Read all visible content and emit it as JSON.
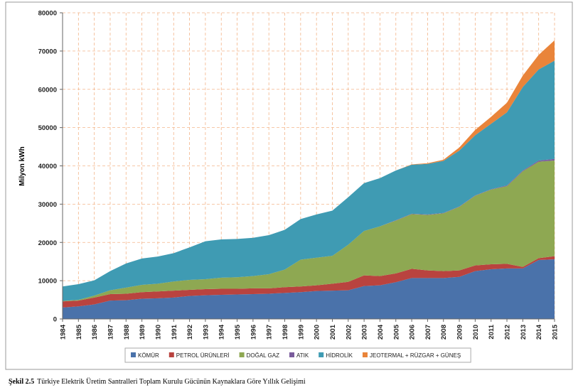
{
  "chart_data": {
    "type": "stacked-area",
    "y_label": "Milyon kWh",
    "caption_number": "Şekil 2.5",
    "caption_text": "Türkiye Elektrik Üretim Santralleri Toplam Kurulu Gücünün Kaynaklara Göre Yıllık Gelişimi",
    "categories": [
      "1984",
      "1985",
      "1986",
      "1987",
      "1988",
      "1989",
      "1990",
      "1991",
      "1992",
      "1993",
      "1994",
      "1995",
      "1996",
      "1997",
      "1998",
      "1999",
      "2000",
      "2001",
      "2002",
      "2003",
      "2004",
      "2005",
      "2006",
      "2007",
      "2008",
      "2009",
      "2010",
      "2011",
      "2012",
      "2013",
      "2014",
      "2015"
    ],
    "ylim": [
      0,
      80000
    ],
    "yticks": [
      0,
      10000,
      20000,
      30000,
      40000,
      50000,
      60000,
      70000,
      80000
    ],
    "grid": true,
    "legend": "bottom",
    "series": [
      {
        "name": "KÖMÜR",
        "color": "#4a72aa",
        "values": [
          3000,
          3300,
          3800,
          4800,
          4900,
          5300,
          5400,
          5600,
          6000,
          6200,
          6300,
          6400,
          6500,
          6600,
          6800,
          7000,
          7300,
          7400,
          7500,
          8600,
          8800,
          9600,
          10700,
          10700,
          10700,
          11000,
          12500,
          13000,
          13200,
          13200,
          15400,
          15600
        ]
      },
      {
        "name": "PETROL ÜRÜNLERİ",
        "color": "#b9433f",
        "values": [
          1600,
          1500,
          1800,
          1700,
          1700,
          1700,
          1800,
          1800,
          1600,
          1600,
          1600,
          1500,
          1500,
          1400,
          1500,
          1500,
          1500,
          1800,
          2200,
          2800,
          2400,
          2300,
          2400,
          2000,
          1800,
          1700,
          1500,
          1300,
          1200,
          400,
          500,
          800
        ]
      },
      {
        "name": "DOĞAL GAZ",
        "color": "#8ea852",
        "values": [
          100,
          200,
          500,
          1000,
          1600,
          1900,
          2000,
          2400,
          2600,
          2600,
          2900,
          3000,
          3200,
          3700,
          4600,
          7000,
          7200,
          7300,
          9700,
          11600,
          13000,
          13800,
          14300,
          14500,
          15100,
          16600,
          18200,
          19500,
          20300,
          25000,
          25200,
          25000
        ]
      },
      {
        "name": "ATIK",
        "color": "#7a5c9c",
        "values": [
          0,
          0,
          0,
          0,
          0,
          0,
          0,
          0,
          0,
          0,
          0,
          0,
          0,
          0,
          0,
          0,
          0,
          0,
          0,
          0,
          0,
          100,
          100,
          100,
          100,
          100,
          100,
          100,
          200,
          200,
          300,
          400
        ]
      },
      {
        "name": "HİDROLİK",
        "color": "#3f9bb3",
        "values": [
          3800,
          4100,
          4000,
          5000,
          6300,
          6900,
          7100,
          7400,
          8500,
          9900,
          10000,
          10000,
          10000,
          10200,
          10400,
          10600,
          11300,
          11800,
          12400,
          12500,
          12600,
          13000,
          12800,
          13200,
          13600,
          14600,
          15700,
          17100,
          19100,
          21800,
          23800,
          25700
        ]
      },
      {
        "name": "JEOTERMAL + RÜZGAR + GÜNEŞ",
        "color": "#e9843a",
        "values": [
          0,
          0,
          0,
          0,
          0,
          0,
          0,
          0,
          0,
          0,
          0,
          0,
          0,
          0,
          0,
          0,
          0,
          0,
          0,
          0,
          0,
          0,
          100,
          200,
          300,
          800,
          1400,
          1800,
          2500,
          3000,
          3800,
          5300
        ]
      }
    ]
  }
}
